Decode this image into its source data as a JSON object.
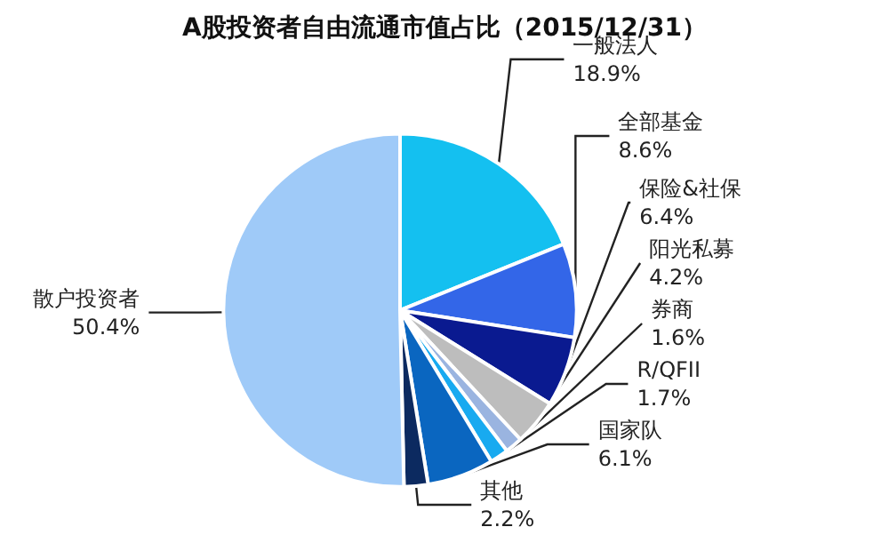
{
  "chart_data": {
    "type": "pie",
    "title": "A股投资者自由流通市值占比（2015/12/31）",
    "categories": [
      "一般法人",
      "全部基金",
      "保险&社保",
      "阳光私募",
      "券商",
      "R/QFII",
      "国家队",
      "其他",
      "散户投资者"
    ],
    "values": [
      18.9,
      8.6,
      6.4,
      4.2,
      1.6,
      1.7,
      6.1,
      2.2,
      50.4
    ],
    "value_labels": [
      "18.9%",
      "8.6%",
      "6.4%",
      "4.2%",
      "1.6%",
      "1.7%",
      "6.1%",
      "2.2%",
      "50.4%"
    ],
    "colors": [
      "#14c0f0",
      "#3366e8",
      "#0a1a90",
      "#bdbdbd",
      "#9ab4e0",
      "#18aaf0",
      "#0a66c0",
      "#0c2a60",
      "#9fcaf8"
    ],
    "legend": false
  }
}
